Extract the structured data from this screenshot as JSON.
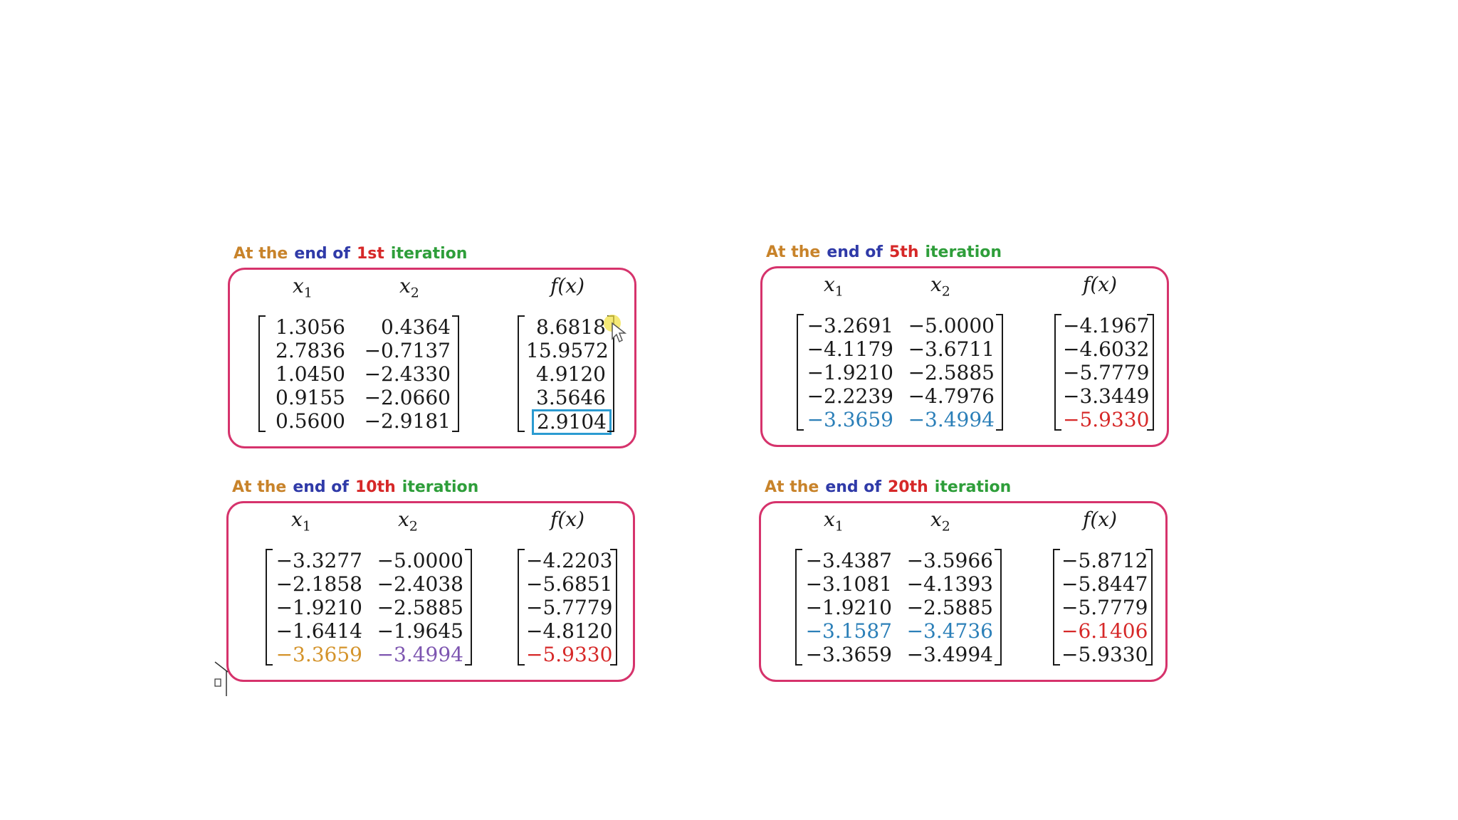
{
  "headers": {
    "x1": "x",
    "x1_sub": "1",
    "x2": "x",
    "x2_sub": "2",
    "fx": "f(x)"
  },
  "colors": {
    "caption_at_the": "#c8832a",
    "caption_end_of": "#2f3aa8",
    "caption_number": "#d62828",
    "caption_iteration": "#2e9e3a",
    "frame": "#d6336c",
    "highlight_box": "#2b9bd1",
    "blue": "#2b7fb8",
    "red": "#d62828",
    "orange": "#d4932a",
    "purple": "#7d55b0"
  },
  "panels": [
    {
      "caption": {
        "p1": "At the",
        "p2": "end of",
        "num": "1st",
        "p4": "iteration"
      },
      "x1": [
        "1.3056",
        "2.7836",
        "1.0450",
        "0.9155",
        "0.5600"
      ],
      "x2": [
        "0.4364",
        "−0.7137",
        "−2.4330",
        "−2.0660",
        "−2.9181"
      ],
      "fx": [
        "8.6818",
        "15.9572",
        "4.9120",
        "3.5646",
        "2.9104"
      ]
    },
    {
      "caption": {
        "p1": "At the",
        "p2": "end of",
        "num": "5th",
        "p4": "iteration"
      },
      "x1": [
        "−3.2691",
        "−4.1179",
        "−1.9210",
        "−2.2239",
        "−3.3659"
      ],
      "x2": [
        "−5.0000",
        "−3.6711",
        "−2.5885",
        "−4.7976",
        "−3.4994"
      ],
      "fx": [
        "−4.1967",
        "−4.6032",
        "−5.7779",
        "−3.3449",
        "−5.9330"
      ]
    },
    {
      "caption": {
        "p1": "At the",
        "p2": "end of",
        "num": "10th",
        "p4": "iteration"
      },
      "x1": [
        "−3.3277",
        "−2.1858",
        "−1.9210",
        "−1.6414",
        "−3.3659"
      ],
      "x2": [
        "−5.0000",
        "−2.4038",
        "−2.5885",
        "−1.9645",
        "−3.4994"
      ],
      "fx": [
        "−4.2203",
        "−5.6851",
        "−5.7779",
        "−4.8120",
        "−5.9330"
      ]
    },
    {
      "caption": {
        "p1": "At the",
        "p2": "end of",
        "num": "20th",
        "p4": "iteration"
      },
      "x1": [
        "−3.4387",
        "−3.1081",
        "−1.9210",
        "−3.1587",
        "−3.3659"
      ],
      "x2": [
        "−3.5966",
        "−4.1393",
        "−2.5885",
        "−3.4736",
        "−3.4994"
      ],
      "fx": [
        "−5.8712",
        "−5.8447",
        "−5.7779",
        "−6.1406",
        "−5.9330"
      ]
    }
  ]
}
